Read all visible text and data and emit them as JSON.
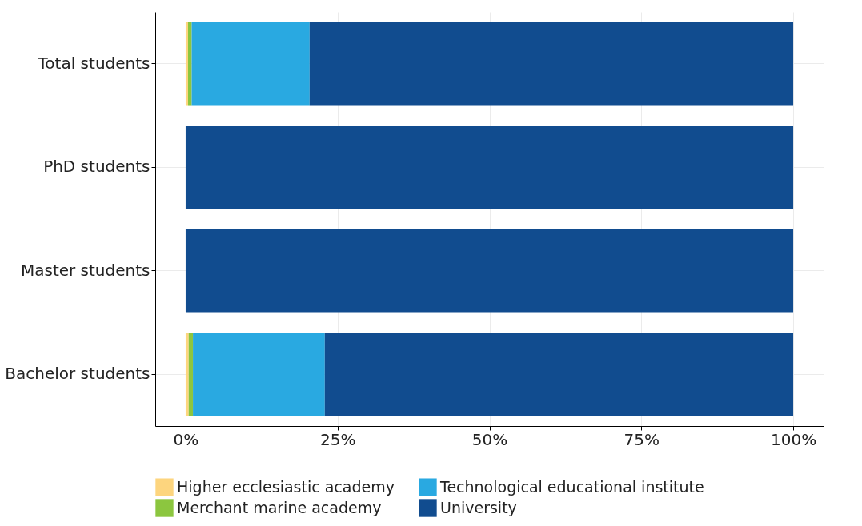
{
  "chart_data": {
    "type": "bar",
    "orientation": "horizontal",
    "stacked": true,
    "categories": [
      "Total students",
      "PhD students",
      "Master students",
      "Bachelor students"
    ],
    "series": [
      {
        "name": "Higher ecclesiastic academy",
        "color": "#fdd57e",
        "values": [
          0.4,
          0,
          0,
          0.5
        ]
      },
      {
        "name": "Merchant marine academy",
        "color": "#8cc63f",
        "values": [
          0.6,
          0,
          0,
          0.7
        ]
      },
      {
        "name": "Technological educational institute",
        "color": "#29a9e1",
        "values": [
          19.4,
          0,
          0,
          21.7
        ]
      },
      {
        "name": "University",
        "color": "#114c8f",
        "values": [
          79.6,
          100,
          100,
          77.1
        ]
      }
    ],
    "xlim": [
      -5,
      105
    ],
    "xticks": [
      {
        "value": 0,
        "label": "0%"
      },
      {
        "value": 25,
        "label": "25%"
      },
      {
        "value": 50,
        "label": "50%"
      },
      {
        "value": 75,
        "label": "75%"
      },
      {
        "value": 100,
        "label": "100%"
      }
    ],
    "grid": true,
    "legend": "bottom"
  }
}
